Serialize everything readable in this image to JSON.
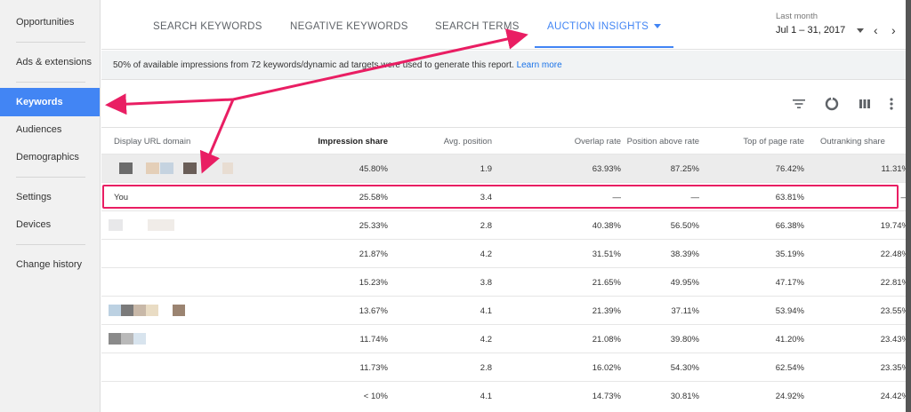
{
  "sidebar": {
    "items": [
      {
        "label": "Opportunities",
        "active": false
      },
      {
        "label": "Ads & extensions",
        "active": false
      },
      {
        "label": "Keywords",
        "active": true
      },
      {
        "label": "Audiences",
        "active": false
      },
      {
        "label": "Demographics",
        "active": false
      },
      {
        "label": "Settings",
        "active": false
      },
      {
        "label": "Devices",
        "active": false
      },
      {
        "label": "Change history",
        "active": false
      }
    ]
  },
  "tabs": [
    {
      "label": "SEARCH KEYWORDS"
    },
    {
      "label": "NEGATIVE KEYWORDS"
    },
    {
      "label": "SEARCH TERMS"
    },
    {
      "label": "AUCTION INSIGHTS"
    }
  ],
  "date_range": {
    "label": "Last month",
    "value": "Jul 1 – 31, 2017"
  },
  "banner": {
    "text": "50% of available impressions from 72 keywords/dynamic ad targets were used to generate this report. ",
    "link": "Learn more"
  },
  "toolbar": {
    "icons": [
      "filter-icon",
      "segment-icon",
      "columns-icon",
      "more-vert-icon"
    ]
  },
  "table": {
    "headers": [
      "Display URL domain",
      "Impression share",
      "Avg. position",
      "Overlap rate",
      "Position above rate",
      "Top of page rate",
      "Outranking share"
    ],
    "rows": [
      {
        "domain": "",
        "impression_share": "45.80%",
        "avg_position": "1.9",
        "overlap_rate": "63.93%",
        "position_above_rate": "87.25%",
        "top_of_page_rate": "76.42%",
        "outranking_share": "11.31%"
      },
      {
        "domain": "You",
        "impression_share": "25.58%",
        "avg_position": "3.4",
        "overlap_rate": "—",
        "position_above_rate": "—",
        "top_of_page_rate": "63.81%",
        "outranking_share": "—"
      },
      {
        "domain": "",
        "impression_share": "25.33%",
        "avg_position": "2.8",
        "overlap_rate": "40.38%",
        "position_above_rate": "56.50%",
        "top_of_page_rate": "66.38%",
        "outranking_share": "19.74%"
      },
      {
        "domain": "",
        "impression_share": "21.87%",
        "avg_position": "4.2",
        "overlap_rate": "31.51%",
        "position_above_rate": "38.39%",
        "top_of_page_rate": "35.19%",
        "outranking_share": "22.48%"
      },
      {
        "domain": "",
        "impression_share": "15.23%",
        "avg_position": "3.8",
        "overlap_rate": "21.65%",
        "position_above_rate": "49.95%",
        "top_of_page_rate": "47.17%",
        "outranking_share": "22.81%"
      },
      {
        "domain": "",
        "impression_share": "13.67%",
        "avg_position": "4.1",
        "overlap_rate": "21.39%",
        "position_above_rate": "37.11%",
        "top_of_page_rate": "53.94%",
        "outranking_share": "23.55%"
      },
      {
        "domain": "",
        "impression_share": "11.74%",
        "avg_position": "4.2",
        "overlap_rate": "21.08%",
        "position_above_rate": "39.80%",
        "top_of_page_rate": "41.20%",
        "outranking_share": "23.43%"
      },
      {
        "domain": "",
        "impression_share": "11.73%",
        "avg_position": "2.8",
        "overlap_rate": "16.02%",
        "position_above_rate": "54.30%",
        "top_of_page_rate": "62.54%",
        "outranking_share": "23.35%"
      },
      {
        "domain": "",
        "impression_share": "< 10%",
        "avg_position": "4.1",
        "overlap_rate": "14.73%",
        "position_above_rate": "30.81%",
        "top_of_page_rate": "24.92%",
        "outranking_share": "24.42%"
      }
    ]
  },
  "colors": {
    "accent": "#4285f4",
    "annotation": "#e91e63"
  }
}
